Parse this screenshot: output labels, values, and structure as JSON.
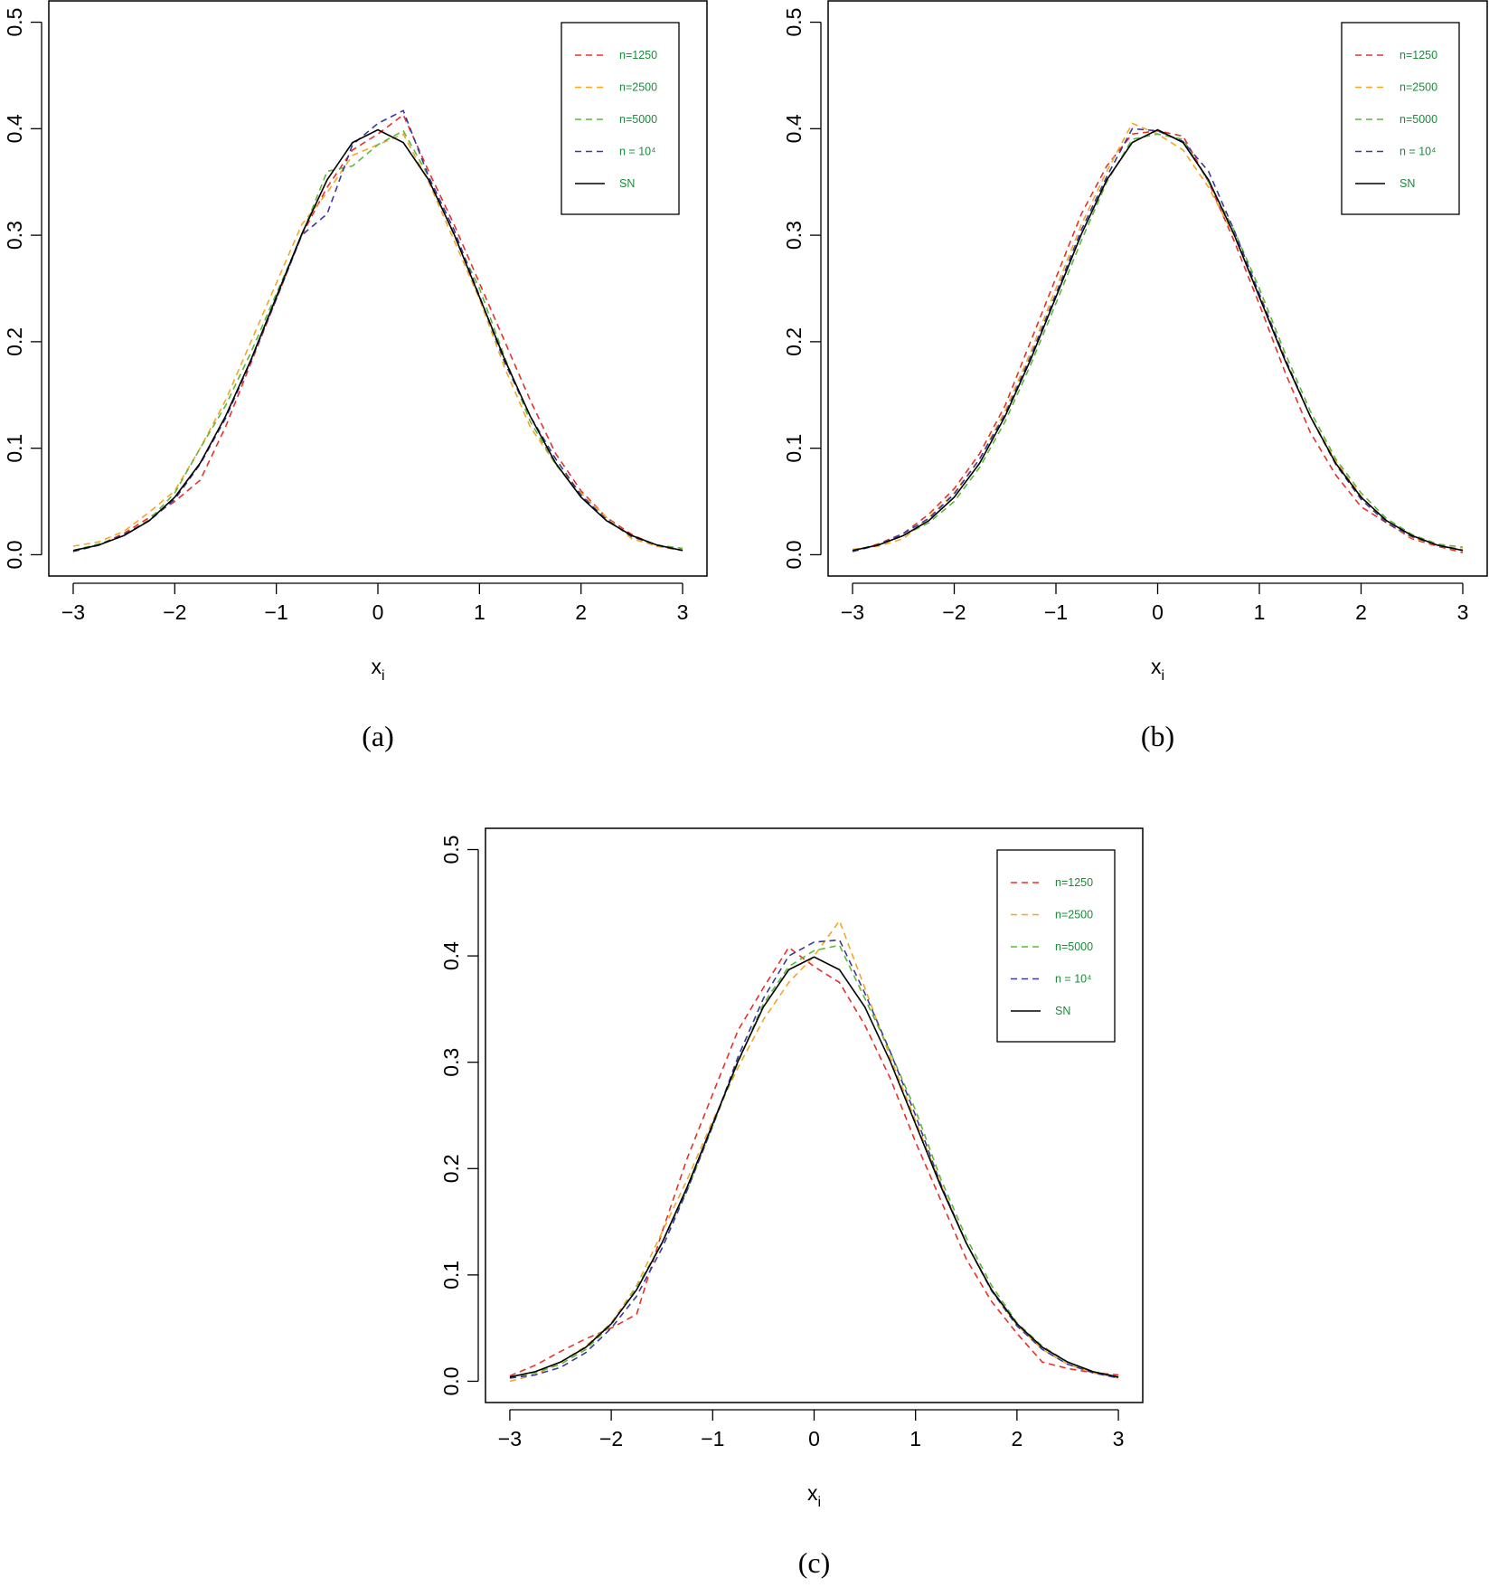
{
  "chart_data": [
    {
      "type": "line",
      "caption": "(a)",
      "xlabel": "x",
      "xlabel_sub": "i",
      "xlim": [
        -3.24,
        3.24
      ],
      "ylim": [
        -0.02,
        0.52
      ],
      "xticks": [
        {
          "value": -3,
          "label": "−3"
        },
        {
          "value": -2,
          "label": "−2"
        },
        {
          "value": -1,
          "label": "−1"
        },
        0,
        1,
        2,
        3
      ],
      "yticks": [
        {
          "value": 0,
          "label": "0.0"
        },
        0.1,
        0.2,
        0.3,
        0.4,
        0.5
      ],
      "legend": "topright",
      "legend_text_color": "#1a8a3a",
      "x": [
        -3,
        -2.75,
        -2.5,
        -2.25,
        -2,
        -1.75,
        -1.5,
        -1.25,
        -1,
        -0.75,
        -0.5,
        -0.25,
        0,
        0.25,
        0.5,
        0.75,
        1,
        1.25,
        1.5,
        1.75,
        2,
        2.25,
        2.5,
        2.75,
        3
      ],
      "series": [
        {
          "name": "n=1250",
          "color": "#e8302a",
          "linestyle": "dashed",
          "values": [
            0.003,
            0.009,
            0.02,
            0.035,
            0.05,
            0.07,
            0.12,
            0.18,
            0.24,
            0.3,
            0.345,
            0.38,
            0.395,
            0.413,
            0.36,
            0.31,
            0.255,
            0.2,
            0.145,
            0.095,
            0.06,
            0.035,
            0.019,
            0.008,
            0.004
          ]
        },
        {
          "name": "n=2500",
          "color": "#f5a623",
          "linestyle": "dashed",
          "values": [
            0.008,
            0.012,
            0.022,
            0.04,
            0.06,
            0.1,
            0.145,
            0.2,
            0.255,
            0.31,
            0.34,
            0.375,
            0.385,
            0.395,
            0.35,
            0.295,
            0.24,
            0.175,
            0.12,
            0.085,
            0.058,
            0.035,
            0.015,
            0.008,
            0.005
          ]
        },
        {
          "name": "n=5000",
          "color": "#5cb83c",
          "linestyle": "dashed",
          "values": [
            0.004,
            0.01,
            0.018,
            0.033,
            0.058,
            0.1,
            0.14,
            0.19,
            0.245,
            0.3,
            0.36,
            0.365,
            0.385,
            0.398,
            0.355,
            0.3,
            0.25,
            0.185,
            0.125,
            0.085,
            0.055,
            0.033,
            0.017,
            0.009,
            0.006
          ]
        },
        {
          "name": "n = 10⁴",
          "color": "#3a3a9c",
          "linestyle": "dashed",
          "values": [
            0.003,
            0.009,
            0.019,
            0.032,
            0.052,
            0.085,
            0.128,
            0.182,
            0.24,
            0.3,
            0.32,
            0.385,
            0.405,
            0.417,
            0.355,
            0.305,
            0.243,
            0.18,
            0.13,
            0.09,
            0.056,
            0.033,
            0.017,
            0.009,
            0.004
          ]
        },
        {
          "name": "SN",
          "color": "#000000",
          "linestyle": "solid",
          "values": [
            0.004,
            0.009,
            0.018,
            0.032,
            0.054,
            0.086,
            0.13,
            0.183,
            0.242,
            0.301,
            0.352,
            0.387,
            0.399,
            0.387,
            0.352,
            0.301,
            0.242,
            0.183,
            0.13,
            0.086,
            0.054,
            0.032,
            0.018,
            0.009,
            0.004
          ]
        }
      ]
    },
    {
      "type": "line",
      "caption": "(b)",
      "xlabel": "x",
      "xlabel_sub": "i",
      "xlim": [
        -3.24,
        3.24
      ],
      "ylim": [
        -0.02,
        0.52
      ],
      "xticks": [
        {
          "value": -3,
          "label": "−3"
        },
        {
          "value": -2,
          "label": "−2"
        },
        {
          "value": -1,
          "label": "−1"
        },
        0,
        1,
        2,
        3
      ],
      "yticks": [
        {
          "value": 0,
          "label": "0.0"
        },
        0.1,
        0.2,
        0.3,
        0.4,
        0.5
      ],
      "legend": "topright",
      "legend_text_color": "#1a8a3a",
      "x": [
        -3,
        -2.75,
        -2.5,
        -2.25,
        -2,
        -1.75,
        -1.5,
        -1.25,
        -1,
        -0.75,
        -0.5,
        -0.25,
        0,
        0.25,
        0.5,
        0.75,
        1,
        1.25,
        1.5,
        1.75,
        2,
        2.25,
        2.5,
        2.75,
        3
      ],
      "series": [
        {
          "name": "n=1250",
          "color": "#e8302a",
          "linestyle": "dashed",
          "values": [
            0.003,
            0.01,
            0.02,
            0.038,
            0.062,
            0.095,
            0.14,
            0.2,
            0.26,
            0.32,
            0.365,
            0.395,
            0.398,
            0.393,
            0.35,
            0.295,
            0.235,
            0.172,
            0.115,
            0.075,
            0.045,
            0.03,
            0.015,
            0.008,
            0.002
          ]
        },
        {
          "name": "n=2500",
          "color": "#f5a623",
          "linestyle": "dashed",
          "values": [
            0.005,
            0.008,
            0.015,
            0.035,
            0.058,
            0.09,
            0.135,
            0.19,
            0.25,
            0.31,
            0.36,
            0.405,
            0.395,
            0.38,
            0.345,
            0.3,
            0.245,
            0.185,
            0.13,
            0.088,
            0.055,
            0.03,
            0.016,
            0.009,
            0.005
          ]
        },
        {
          "name": "n=5000",
          "color": "#5cb83c",
          "linestyle": "dashed",
          "values": [
            0.004,
            0.009,
            0.018,
            0.03,
            0.05,
            0.082,
            0.125,
            0.178,
            0.236,
            0.295,
            0.35,
            0.39,
            0.395,
            0.39,
            0.35,
            0.305,
            0.25,
            0.19,
            0.135,
            0.09,
            0.058,
            0.034,
            0.019,
            0.01,
            0.007
          ]
        },
        {
          "name": "n = 10⁴",
          "color": "#3a3a9c",
          "linestyle": "dashed",
          "values": [
            0.003,
            0.009,
            0.02,
            0.034,
            0.057,
            0.09,
            0.132,
            0.186,
            0.245,
            0.305,
            0.355,
            0.4,
            0.398,
            0.388,
            0.36,
            0.305,
            0.245,
            0.185,
            0.13,
            0.085,
            0.052,
            0.03,
            0.017,
            0.009,
            0.004
          ]
        },
        {
          "name": "SN",
          "color": "#000000",
          "linestyle": "solid",
          "values": [
            0.004,
            0.009,
            0.018,
            0.032,
            0.054,
            0.086,
            0.13,
            0.183,
            0.242,
            0.301,
            0.352,
            0.387,
            0.399,
            0.387,
            0.352,
            0.301,
            0.242,
            0.183,
            0.13,
            0.086,
            0.054,
            0.032,
            0.018,
            0.009,
            0.004
          ]
        }
      ]
    },
    {
      "type": "line",
      "caption": "(c)",
      "xlabel": "x",
      "xlabel_sub": "i",
      "xlim": [
        -3.24,
        3.24
      ],
      "ylim": [
        -0.02,
        0.52
      ],
      "xticks": [
        {
          "value": -3,
          "label": "−3"
        },
        {
          "value": -2,
          "label": "−2"
        },
        {
          "value": -1,
          "label": "−1"
        },
        0,
        1,
        2,
        3
      ],
      "yticks": [
        {
          "value": 0,
          "label": "0.0"
        },
        0.1,
        0.2,
        0.3,
        0.4,
        0.5
      ],
      "legend": "topright",
      "legend_text_color": "#1a8a3a",
      "x": [
        -3,
        -2.75,
        -2.5,
        -2.25,
        -2,
        -1.75,
        -1.5,
        -1.25,
        -1,
        -0.75,
        -0.5,
        -0.25,
        0,
        0.25,
        0.5,
        0.75,
        1,
        1.25,
        1.5,
        1.75,
        2,
        2.25,
        2.5,
        2.75,
        3
      ],
      "series": [
        {
          "name": "n=1250",
          "color": "#e8302a",
          "linestyle": "dashed",
          "values": [
            0.005,
            0.015,
            0.028,
            0.04,
            0.05,
            0.063,
            0.14,
            0.21,
            0.27,
            0.33,
            0.37,
            0.408,
            0.39,
            0.375,
            0.335,
            0.285,
            0.225,
            0.17,
            0.115,
            0.075,
            0.045,
            0.018,
            0.012,
            0.008,
            0.006
          ]
        },
        {
          "name": "n=2500",
          "color": "#f5a623",
          "linestyle": "dashed",
          "values": [
            0.0,
            0.006,
            0.018,
            0.033,
            0.055,
            0.09,
            0.14,
            0.19,
            0.245,
            0.295,
            0.34,
            0.375,
            0.4,
            0.433,
            0.37,
            0.305,
            0.245,
            0.185,
            0.13,
            0.085,
            0.053,
            0.03,
            0.016,
            0.008,
            0.003
          ]
        },
        {
          "name": "n=5000",
          "color": "#5cb83c",
          "linestyle": "dashed",
          "values": [
            0.004,
            0.008,
            0.016,
            0.03,
            0.053,
            0.088,
            0.13,
            0.18,
            0.24,
            0.3,
            0.355,
            0.39,
            0.405,
            0.41,
            0.36,
            0.31,
            0.255,
            0.19,
            0.135,
            0.09,
            0.055,
            0.033,
            0.018,
            0.009,
            0.004
          ]
        },
        {
          "name": "n = 10⁴",
          "color": "#3a3a9c",
          "linestyle": "dashed",
          "values": [
            0.003,
            0.006,
            0.013,
            0.027,
            0.05,
            0.08,
            0.125,
            0.18,
            0.24,
            0.305,
            0.36,
            0.4,
            0.413,
            0.415,
            0.365,
            0.31,
            0.25,
            0.185,
            0.13,
            0.085,
            0.052,
            0.03,
            0.016,
            0.008,
            0.003
          ]
        },
        {
          "name": "SN",
          "color": "#000000",
          "linestyle": "solid",
          "values": [
            0.004,
            0.009,
            0.018,
            0.032,
            0.054,
            0.086,
            0.13,
            0.183,
            0.242,
            0.301,
            0.352,
            0.387,
            0.399,
            0.387,
            0.352,
            0.301,
            0.242,
            0.183,
            0.13,
            0.086,
            0.054,
            0.032,
            0.018,
            0.009,
            0.004
          ]
        }
      ]
    }
  ]
}
